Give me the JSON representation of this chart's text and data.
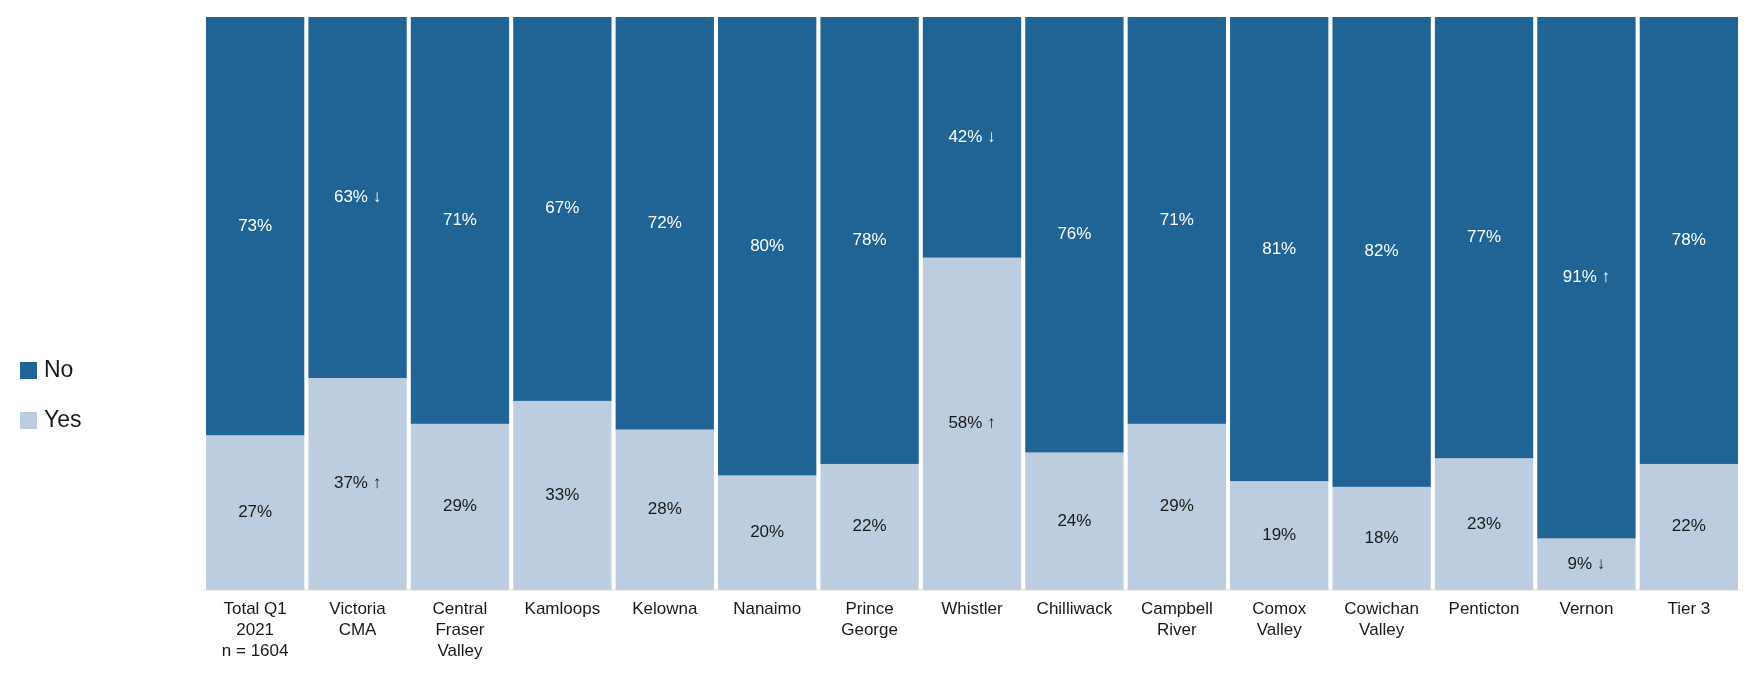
{
  "chart_data": {
    "type": "bar",
    "stacked": true,
    "legend": "left",
    "data_labels": true,
    "categories": [
      "Total Q1\n2021\nn = 1604",
      "Victoria\nCMA",
      "Central\nFraser\nValley",
      "Kamloops",
      "Kelowna",
      "Nanaimo",
      "Prince\nGeorge",
      "Whistler",
      "Chilliwack",
      "Campbell\nRiver",
      "Comox\nValley",
      "Cowichan\nValley",
      "Penticton",
      "Vernon",
      "Tier 3"
    ],
    "series": [
      {
        "name": "Yes",
        "color": "#bccddf",
        "values": [
          27,
          37,
          29,
          33,
          28,
          20,
          22,
          58,
          24,
          29,
          19,
          18,
          23,
          9,
          22
        ],
        "value_labels": [
          "27%",
          "37% ↑",
          "29%",
          "33%",
          "28%",
          "20%",
          "22%",
          "58% ↑",
          "24%",
          "29%",
          "19%",
          "18%",
          "23%",
          "9% ↓",
          "22%"
        ]
      },
      {
        "name": "No",
        "color": "#1f6494",
        "values": [
          73,
          63,
          71,
          67,
          72,
          80,
          78,
          42,
          76,
          71,
          81,
          82,
          77,
          91,
          78
        ],
        "value_labels": [
          "73%",
          "63% ↓",
          "71%",
          "67%",
          "72%",
          "80%",
          "78%",
          "42% ↓",
          "76%",
          "71%",
          "81%",
          "82%",
          "77%",
          "91% ↑",
          "78%"
        ]
      }
    ]
  }
}
